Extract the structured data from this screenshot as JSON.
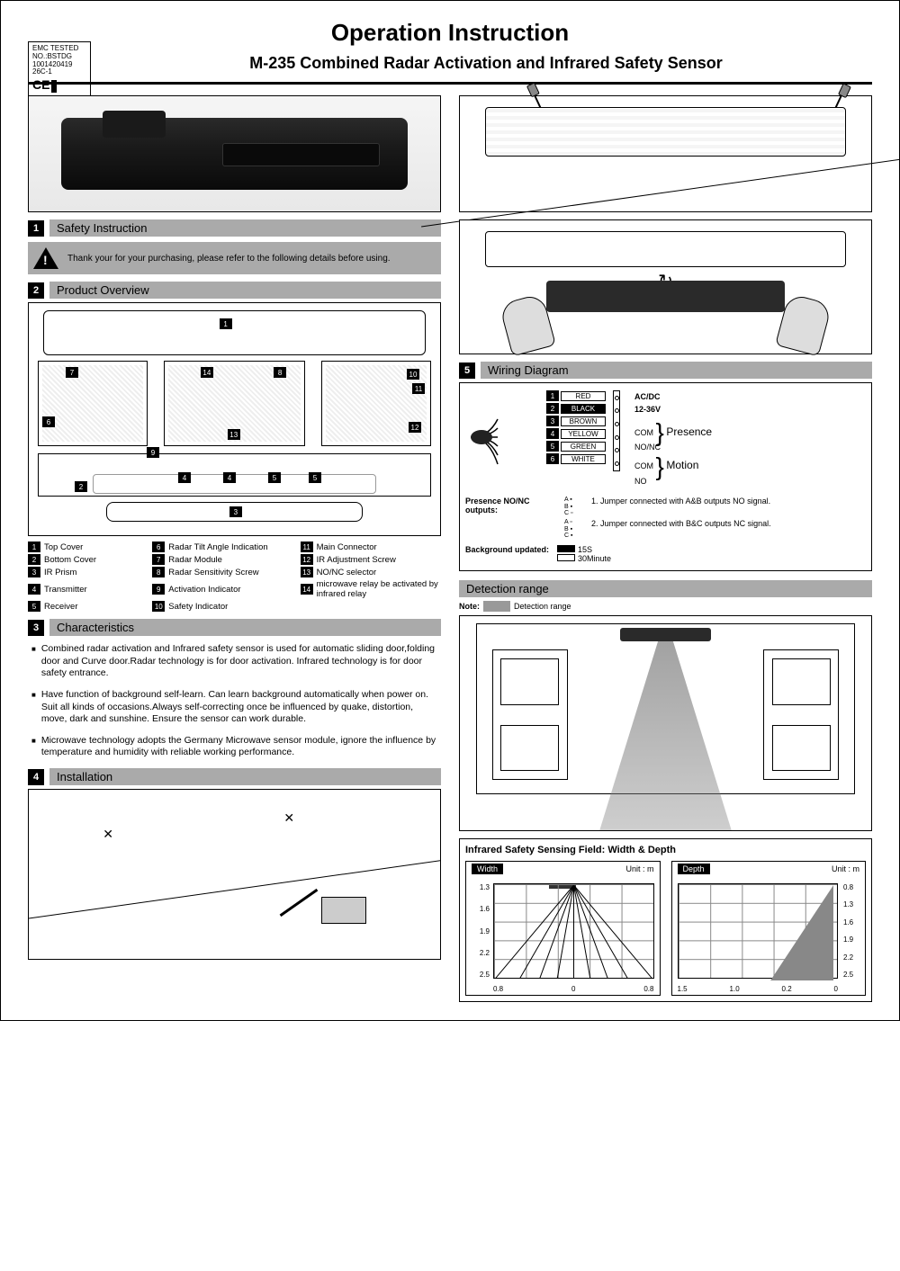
{
  "header": {
    "main_title": "Operation Instruction",
    "subtitle": "M-235 Combined Radar Activation and Infrared Safety Sensor",
    "emc": {
      "l1": "EMC TESTED",
      "l2": "NO.:BSTDG",
      "l3": "1001420419",
      "l4": "26C-1",
      "ce": "CE"
    }
  },
  "sections": {
    "s1": {
      "num": "1",
      "title": "Safety Instruction"
    },
    "s2": {
      "num": "2",
      "title": "Product Overview"
    },
    "s3": {
      "num": "3",
      "title": "Characteristics"
    },
    "s4": {
      "num": "4",
      "title": "Installation"
    },
    "s5": {
      "num": "5",
      "title": "Wiring Diagram"
    },
    "s6": {
      "title": "Detection range"
    },
    "sensing_title": "Infrared Safety Sensing Field: Width & Depth"
  },
  "warning": "Thank your for your purchasing, please refer to the following details before using.",
  "overview_parts": [
    {
      "n": "1",
      "t": "Top Cover"
    },
    {
      "n": "2",
      "t": "Bottom Cover"
    },
    {
      "n": "3",
      "t": "IR Prism"
    },
    {
      "n": "4",
      "t": "Transmitter"
    },
    {
      "n": "5",
      "t": "Receiver"
    },
    {
      "n": "6",
      "t": "Radar Tilt Angle Indication"
    },
    {
      "n": "7",
      "t": "Radar Module"
    },
    {
      "n": "8",
      "t": "Radar Sensitivity Screw"
    },
    {
      "n": "9",
      "t": "Activation Indicator"
    },
    {
      "n": "10",
      "t": "Safety Indicator"
    },
    {
      "n": "11",
      "t": "Main Connector"
    },
    {
      "n": "12",
      "t": "IR Adjustment Screw"
    },
    {
      "n": "13",
      "t": "NO/NC selector"
    },
    {
      "n": "14",
      "t": "microwave relay be activated by infrared relay"
    }
  ],
  "characteristics": [
    "Combined radar activation and Infrared safety sensor is used for automatic sliding door,folding door and Curve door.Radar technology is for door activation. Infrared technology is for door safety entrance.",
    "Have function of background self-learn. Can learn background automatically when power on. Suit all kinds of occasions.Always self-correcting once be influenced by quake, distortion, move, dark and sunshine. Ensure the sensor can work durable.",
    "Microwave technology adopts the Germany Microwave sensor module, ignore the influence by temperature and humidity with reliable working performance."
  ],
  "wiring": {
    "wires": [
      {
        "n": "1",
        "c": "RED",
        "bg": "#fff"
      },
      {
        "n": "2",
        "c": "BLACK",
        "bg": "#000"
      },
      {
        "n": "3",
        "c": "BROWN",
        "bg": "#fff"
      },
      {
        "n": "4",
        "c": "YELLOW",
        "bg": "#fff"
      },
      {
        "n": "5",
        "c": "GREEN",
        "bg": "#fff"
      },
      {
        "n": "6",
        "c": "WHITE",
        "bg": "#fff"
      }
    ],
    "labels": {
      "power": "AC/DC\n12-36V",
      "com1": "COM",
      "nonc": "NO/NC",
      "presence": "Presence",
      "com2": "COM",
      "no": "NO",
      "motion": "Motion"
    },
    "presence_label": "Presence NO/NC outputs:",
    "jumper1": "1. Jumper connected with A&B outputs NO signal.",
    "jumper2": "2. Jumper connected with B&C outputs NC signal.",
    "bg_label": "Background updated:",
    "bg_opt1": "15S",
    "bg_opt2": "30Minute"
  },
  "detection": {
    "note_prefix": "Note:",
    "note_text": "Detection range"
  },
  "sensing": {
    "width": {
      "label": "Width",
      "unit": "Unit : m",
      "y": [
        "1.3",
        "1.6",
        "1.9",
        "2.2",
        "2.5"
      ],
      "x": [
        "0.8",
        "0",
        "0.8"
      ],
      "fan_angles": [
        -40,
        -30,
        -20,
        -10,
        0,
        10,
        20,
        30,
        40
      ]
    },
    "depth": {
      "label": "Depth",
      "unit": "Unit : m",
      "y": [
        "0.8",
        "1.3",
        "1.6",
        "1.9",
        "2.2",
        "2.5"
      ],
      "x": [
        "1.5",
        "1.0",
        "0.2",
        "0"
      ],
      "fill": "#888888"
    }
  }
}
